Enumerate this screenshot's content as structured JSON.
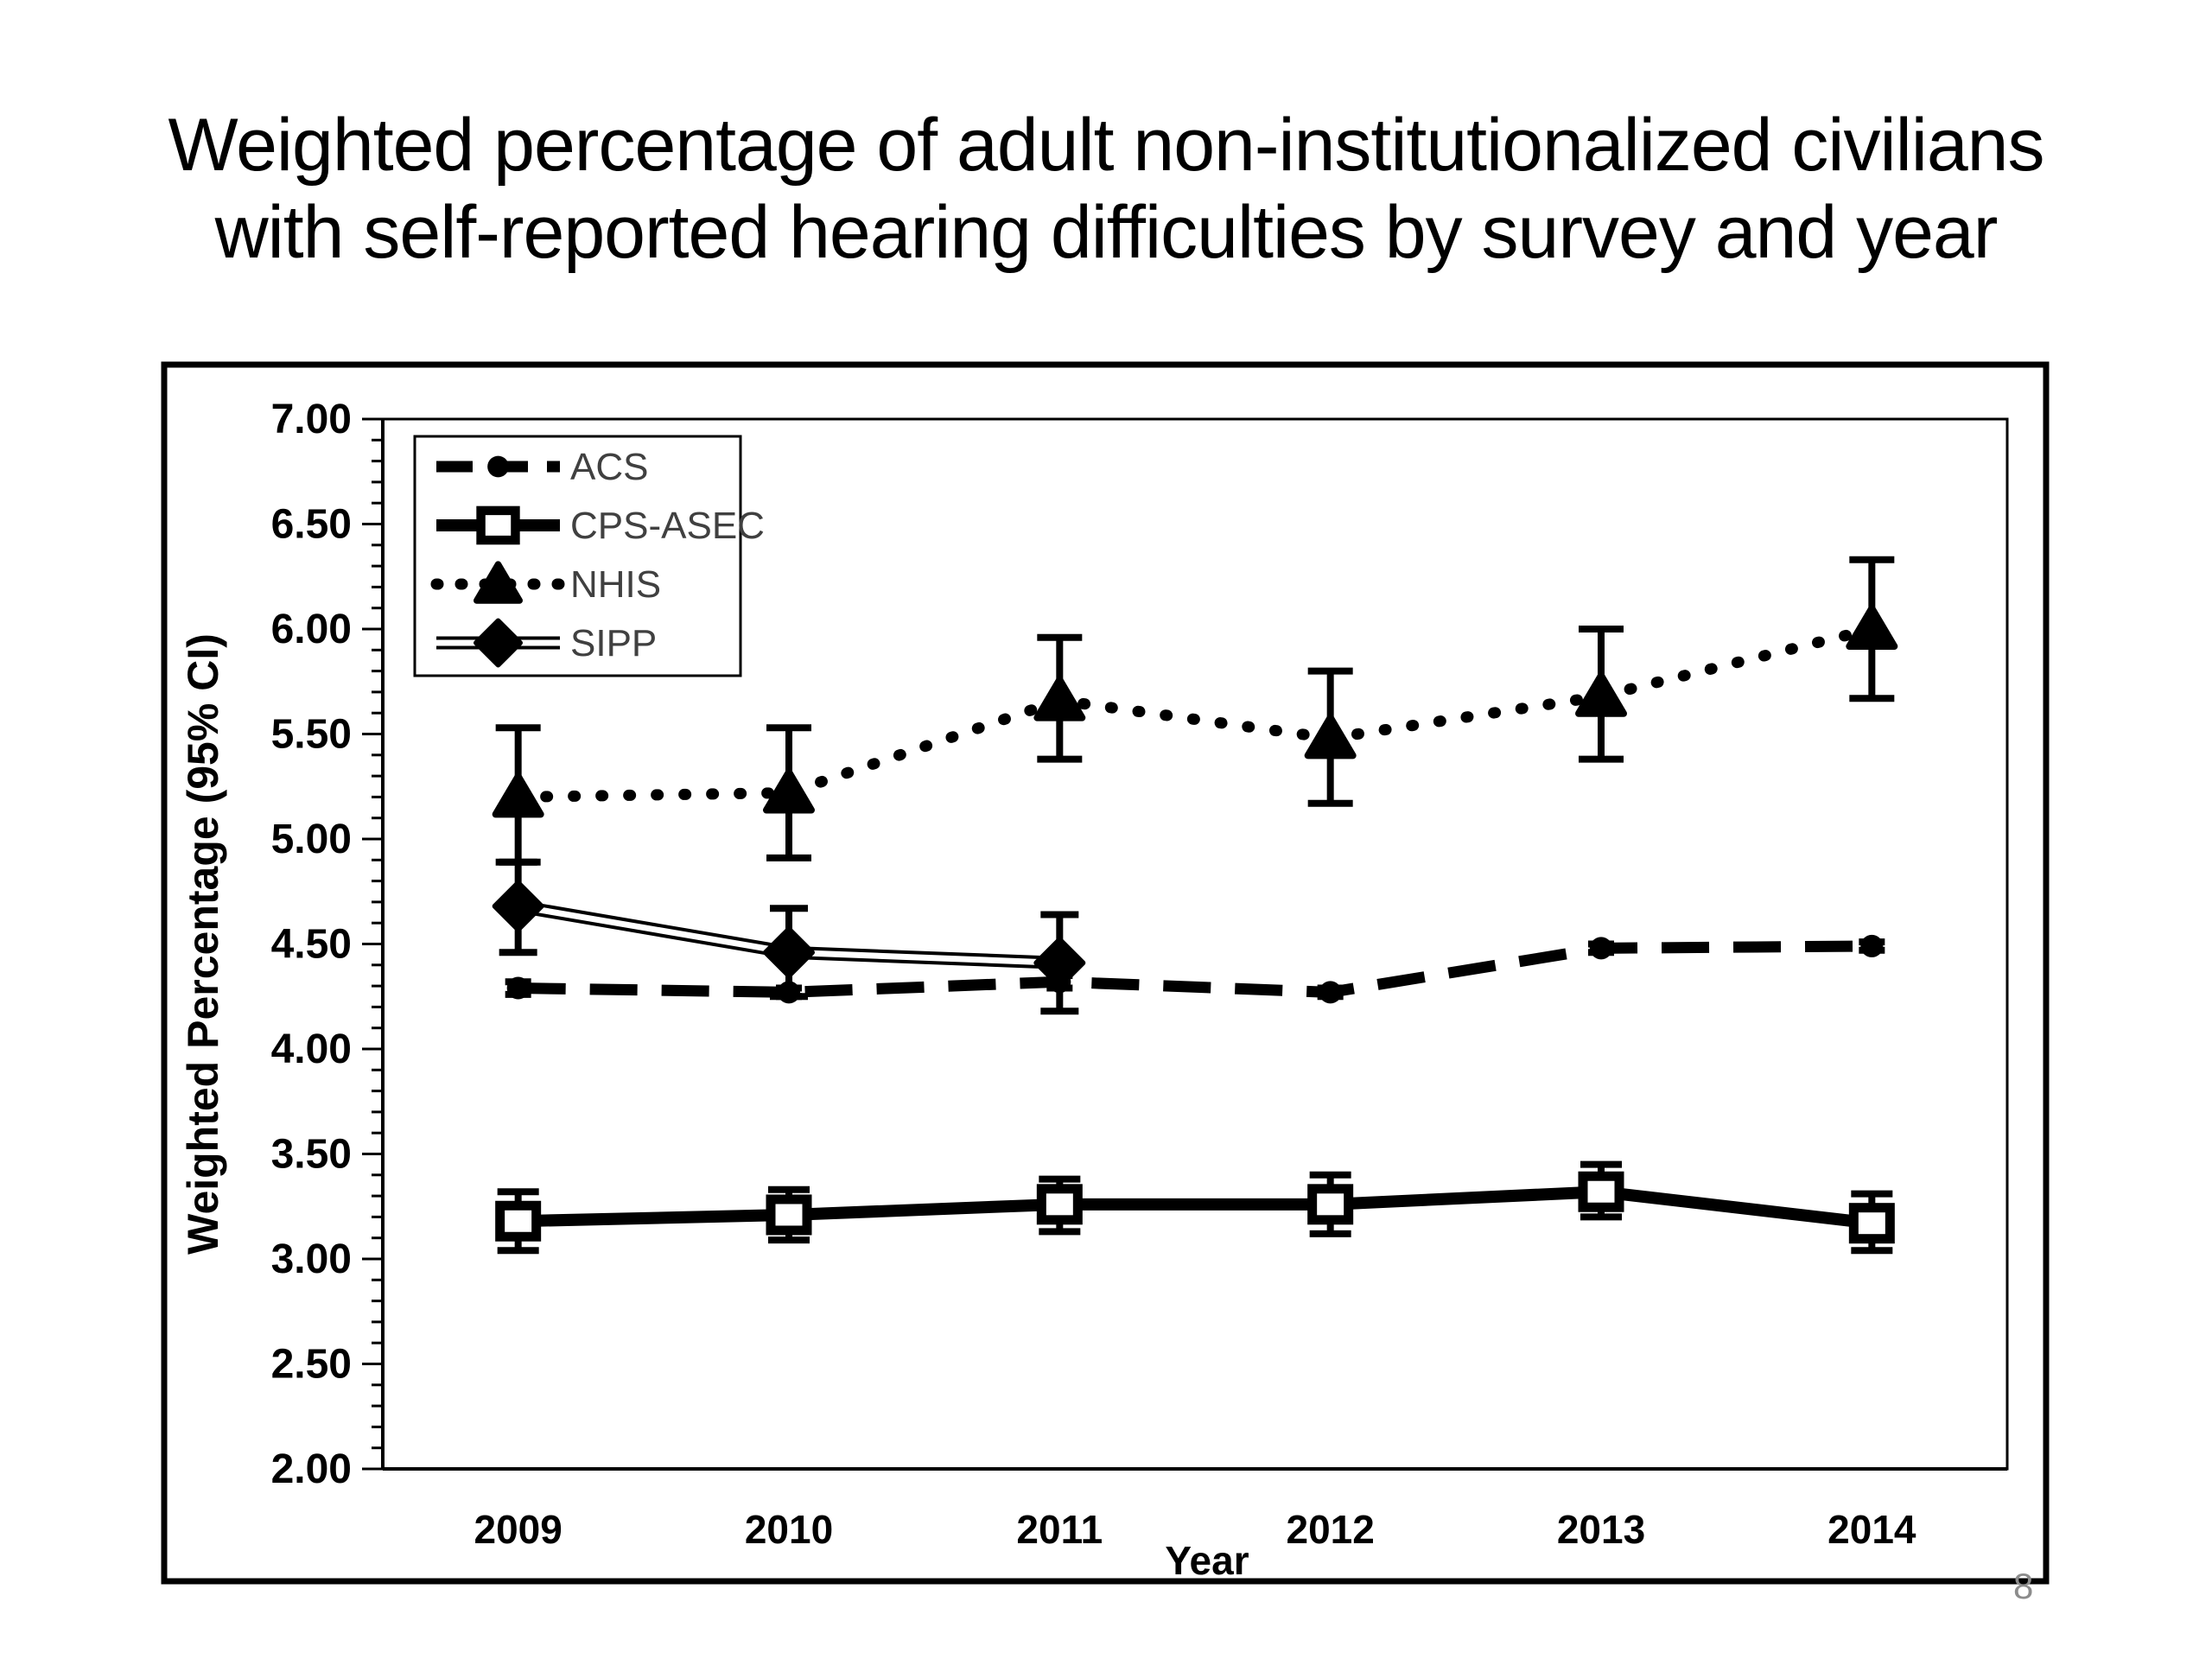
{
  "title": {
    "line1": "Weighted percentage of adult non-institutionalized civilians",
    "line2": "with self-reported hearing difficulties by survey and year"
  },
  "page": {
    "page_number": "8"
  },
  "chart_data": {
    "type": "line",
    "title": "Weighted percentage of adult non-institutionalized civilians with self-reported hearing difficulties by survey and year",
    "xlabel": "Year",
    "ylabel": "Weighted Percentage (95% CI)",
    "ylim": [
      2.0,
      7.0
    ],
    "ytick_major_step": 0.5,
    "ytick_minor_step": 0.1,
    "grid": "off",
    "legend_position": "inside-top-left",
    "categories": [
      "2009",
      "2010",
      "2011",
      "2012",
      "2013",
      "2014"
    ],
    "series": [
      {
        "name": "ACS",
        "line_style": "dashed",
        "marker": "circle-filled",
        "values": [
          4.29,
          4.27,
          4.32,
          4.27,
          4.48,
          4.49
        ],
        "ci_low": [
          4.26,
          4.25,
          4.29,
          4.25,
          4.46,
          4.47
        ],
        "ci_high": [
          4.32,
          4.29,
          4.35,
          4.29,
          4.5,
          4.51
        ]
      },
      {
        "name": "CPS-ASEC",
        "line_style": "solid",
        "marker": "square-open",
        "values": [
          3.18,
          3.21,
          3.26,
          3.26,
          3.32,
          3.17
        ],
        "ci_low": [
          3.04,
          3.09,
          3.13,
          3.12,
          3.2,
          3.04
        ],
        "ci_high": [
          3.32,
          3.33,
          3.38,
          3.4,
          3.45,
          3.31
        ]
      },
      {
        "name": "NHIS",
        "line_style": "dotted",
        "marker": "triangle-filled",
        "values": [
          5.2,
          5.22,
          5.66,
          5.48,
          5.68,
          6.0
        ],
        "ci_low": [
          4.89,
          4.91,
          5.38,
          5.17,
          5.38,
          5.67
        ],
        "ci_high": [
          5.53,
          5.53,
          5.96,
          5.8,
          6.0,
          6.33
        ]
      },
      {
        "name": "SIPP",
        "line_style": "double",
        "marker": "diamond-filled",
        "values": [
          4.68,
          4.46,
          4.41,
          null,
          null,
          null
        ],
        "ci_low": [
          4.46,
          4.25,
          4.18,
          null,
          null,
          null
        ],
        "ci_high": [
          4.89,
          4.67,
          4.64,
          null,
          null,
          null
        ]
      }
    ],
    "colors": {
      "series": "#000000",
      "axis_text": "#000000",
      "legend_text": "#404040",
      "background": "#ffffff"
    }
  }
}
